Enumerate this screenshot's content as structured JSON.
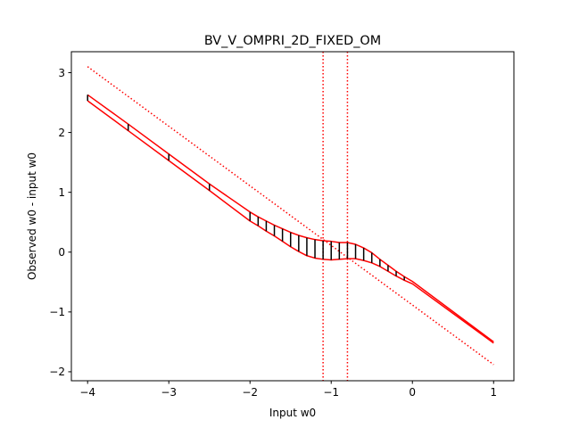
{
  "chart_data": {
    "type": "line",
    "title": "BV_V_OMPRI_2D_FIXED_OM",
    "xlabel": "Input w0",
    "ylabel": "Observed w0 - input w0",
    "xlim": [
      -4.2,
      1.25
    ],
    "ylim": [
      -2.15,
      3.35
    ],
    "xticks": [
      -4,
      -3,
      -2,
      -1,
      0,
      1
    ],
    "xtick_labels": [
      "−4",
      "−3",
      "−2",
      "−1",
      "0",
      "1"
    ],
    "yticks": [
      -2,
      -1,
      0,
      1,
      2,
      3
    ],
    "ytick_labels": [
      "−2",
      "−1",
      "0",
      "1",
      "2",
      "3"
    ],
    "grid": false,
    "legend": "none",
    "colors": {
      "band": "#ff0000",
      "error_bar": "#000000",
      "axes": "#000000"
    },
    "series": [
      {
        "role": "upper-bound",
        "style": "solid",
        "x": [
          -4.0,
          -3.5,
          -3.0,
          -2.5,
          -2.0,
          -1.9,
          -1.8,
          -1.7,
          -1.6,
          -1.5,
          -1.4,
          -1.3,
          -1.2,
          -1.1,
          -1.0,
          -0.9,
          -0.8,
          -0.7,
          -0.6,
          -0.5,
          -0.4,
          -0.3,
          -0.2,
          -0.1,
          0.0,
          1.0
        ],
        "y": [
          2.63,
          2.14,
          1.64,
          1.14,
          0.67,
          0.59,
          0.52,
          0.45,
          0.39,
          0.33,
          0.28,
          0.24,
          0.21,
          0.19,
          0.18,
          0.16,
          0.16,
          0.13,
          0.07,
          -0.01,
          -0.12,
          -0.22,
          -0.32,
          -0.41,
          -0.49,
          -1.5
        ]
      },
      {
        "role": "lower-bound",
        "style": "solid",
        "x": [
          -4.0,
          -3.5,
          -3.0,
          -2.5,
          -2.0,
          -1.9,
          -1.8,
          -1.7,
          -1.6,
          -1.5,
          -1.4,
          -1.3,
          -1.2,
          -1.1,
          -1.0,
          -0.9,
          -0.8,
          -0.7,
          -0.6,
          -0.5,
          -0.4,
          -0.3,
          -0.2,
          -0.1,
          0.0,
          1.0
        ],
        "y": [
          2.53,
          2.03,
          1.53,
          1.03,
          0.52,
          0.44,
          0.35,
          0.27,
          0.18,
          0.09,
          0.01,
          -0.06,
          -0.1,
          -0.12,
          -0.13,
          -0.12,
          -0.11,
          -0.11,
          -0.14,
          -0.18,
          -0.24,
          -0.32,
          -0.4,
          -0.47,
          -0.53,
          -1.52
        ]
      },
      {
        "role": "diagonal-reference",
        "style": "dotted",
        "x": [
          -4.0,
          1.0
        ],
        "y": [
          3.1,
          -1.88
        ]
      }
    ],
    "error_bars": {
      "x": [
        -4.0,
        -3.5,
        -3.0,
        -2.5,
        -2.0,
        -1.9,
        -1.8,
        -1.7,
        -1.6,
        -1.5,
        -1.4,
        -1.3,
        -1.2,
        -1.1,
        -1.0,
        -0.9,
        -0.8,
        -0.7,
        -0.6,
        -0.5,
        -0.4,
        -0.3,
        -0.2,
        -0.1
      ],
      "y_low": [
        2.53,
        2.03,
        1.53,
        1.03,
        0.52,
        0.44,
        0.35,
        0.27,
        0.18,
        0.09,
        0.01,
        -0.06,
        -0.1,
        -0.12,
        -0.13,
        -0.12,
        -0.11,
        -0.11,
        -0.14,
        -0.18,
        -0.24,
        -0.32,
        -0.4,
        -0.47
      ],
      "y_high": [
        2.63,
        2.14,
        1.64,
        1.14,
        0.67,
        0.59,
        0.52,
        0.45,
        0.39,
        0.33,
        0.28,
        0.24,
        0.21,
        0.19,
        0.18,
        0.16,
        0.16,
        0.13,
        0.07,
        -0.01,
        -0.12,
        -0.22,
        -0.32,
        -0.41
      ]
    },
    "vertical_lines": {
      "style": "dotted",
      "x": [
        -1.1,
        -0.8
      ]
    }
  }
}
